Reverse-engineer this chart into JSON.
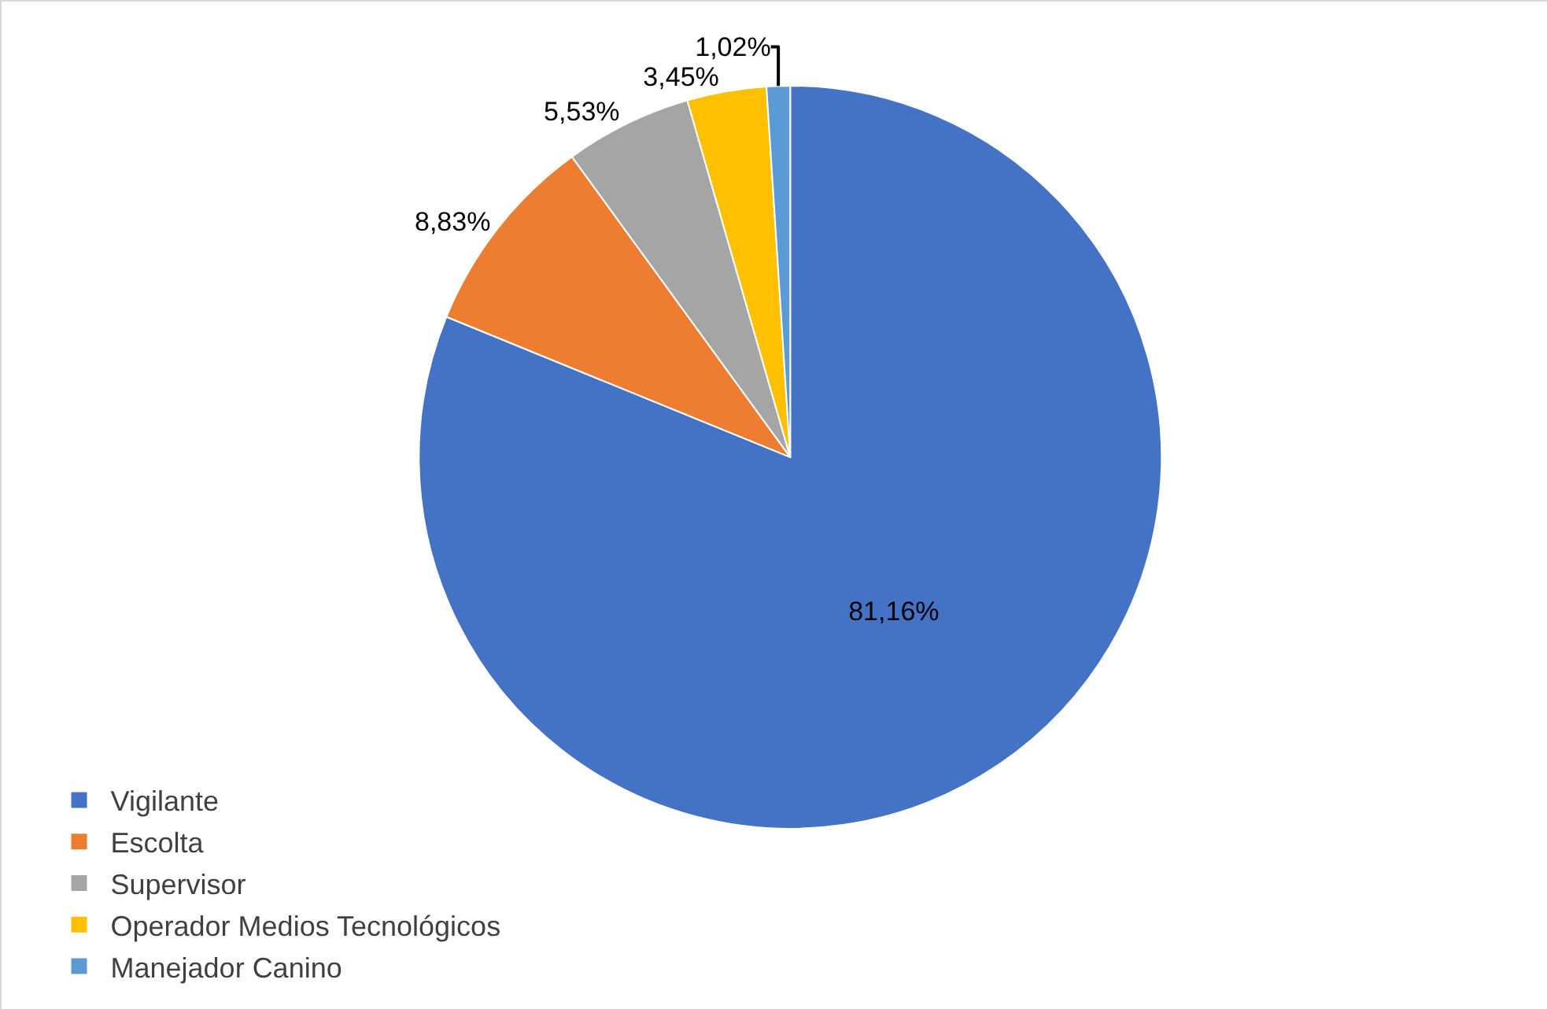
{
  "chart_data": {
    "type": "pie",
    "categories": [
      "Vigilante",
      "Escolta",
      "Supervisor",
      "Operador Medios Tecnológicos",
      "Manejador Canino"
    ],
    "values": [
      81.16,
      8.83,
      5.53,
      3.45,
      1.02
    ],
    "colors": [
      "#4472c4",
      "#ed7d31",
      "#a5a5a5",
      "#ffc000",
      "#5b9bd5"
    ],
    "value_labels": [
      "81,16%",
      "8,83%",
      "5,53%",
      "3,45%",
      "1,02%"
    ],
    "legend": "bottom left"
  }
}
